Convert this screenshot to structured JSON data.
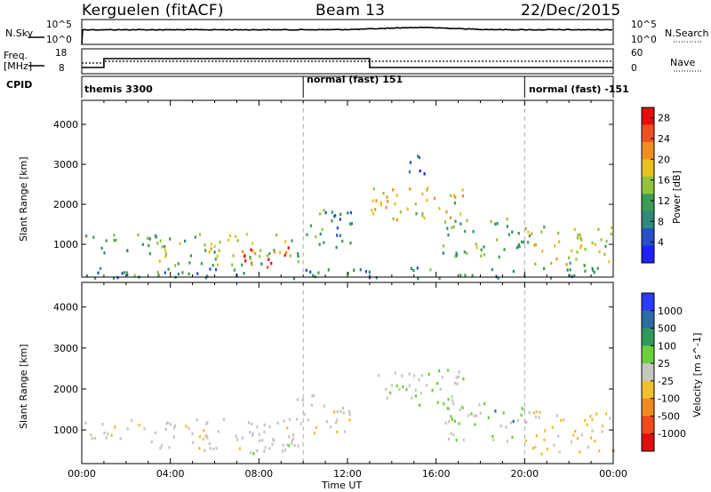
{
  "header": {
    "site": "Kerguelen (fitACF)",
    "beam": "Beam 13",
    "date": "22/Dec/2015"
  },
  "panels": {
    "nsky": {
      "label": "N.Sky",
      "ticks_left": [
        "10^5",
        "10^0"
      ],
      "right_label": "N.Search",
      "ticks_right": [
        "10^5",
        "10^0"
      ]
    },
    "freq": {
      "label_line1": "Freq.",
      "label_line2": "[MHz]",
      "ticks_left": [
        "18",
        "8"
      ],
      "right_label": "Nave",
      "ticks_right": [
        "60",
        "0"
      ]
    },
    "cpid": {
      "label": "CPID",
      "segments": [
        "themis 3300",
        "normal (fast) 151",
        "normal (fast) -151"
      ]
    }
  },
  "chart_data": [
    {
      "type": "heatmap",
      "title": "",
      "xlabel": "",
      "ylabel": "Slant Range [km]",
      "x_ticks": [
        "00:00",
        "04:00",
        "08:00",
        "12:00",
        "16:00",
        "20:00",
        "00:00"
      ],
      "xlim": [
        0,
        24
      ],
      "ylim": [
        180,
        4600
      ],
      "y_ticks": [
        1000,
        2000,
        3000,
        4000
      ],
      "colorbar": {
        "label": "Power [dB]",
        "ticks": [
          4,
          8,
          12,
          16,
          20,
          24,
          28
        ],
        "range": [
          0,
          30
        ],
        "colors": [
          "#1f1fff",
          "#2850c8",
          "#2e8a7a",
          "#3c9c56",
          "#90c43a",
          "#e8c020",
          "#f08f20",
          "#f05020",
          "#e80d0d"
        ]
      },
      "scatter_regions": [
        {
          "x": [
            0.0,
            3.0
          ],
          "y": [
            820,
            1280
          ],
          "value": 12
        },
        {
          "x": [
            3.0,
            10.0
          ],
          "y": [
            500,
            1300
          ],
          "value": 14
        },
        {
          "x": [
            6.8,
            9.6
          ],
          "y": [
            450,
            950
          ],
          "value": 26
        },
        {
          "x": [
            5.5,
            6.6
          ],
          "y": [
            850,
            1150
          ],
          "value": 18
        },
        {
          "x": [
            9.6,
            12.2
          ],
          "y": [
            950,
            1900
          ],
          "value": 10
        },
        {
          "x": [
            13.0,
            17.3
          ],
          "y": [
            1600,
            2500
          ],
          "value": 18
        },
        {
          "x": [
            14.7,
            15.7
          ],
          "y": [
            2800,
            3400
          ],
          "value": 8
        },
        {
          "x": [
            16.2,
            20.0
          ],
          "y": [
            700,
            1700
          ],
          "value": 12
        },
        {
          "x": [
            20.0,
            24.0
          ],
          "y": [
            450,
            1500
          ],
          "value": 16
        },
        {
          "x": [
            0.0,
            24.0
          ],
          "y": [
            180,
            450
          ],
          "value": 9
        }
      ]
    },
    {
      "type": "heatmap",
      "title": "",
      "xlabel": "Time UT",
      "ylabel": "Slant Range [km]",
      "x_ticks": [
        "00:00",
        "04:00",
        "08:00",
        "12:00",
        "16:00",
        "20:00",
        "00:00"
      ],
      "xlim": [
        0,
        24
      ],
      "ylim": [
        180,
        4600
      ],
      "y_ticks": [
        1000,
        2000,
        3000,
        4000
      ],
      "colorbar": {
        "label": "Velocity [m s^-1]",
        "ticks": [
          "1000",
          "500",
          "100",
          "25",
          "-25",
          "-100",
          "-500",
          "-1000"
        ],
        "colors": [
          "#2a3cff",
          "#2c6ca6",
          "#2f9a5a",
          "#6cd03c",
          "#c7c6be",
          "#f0c030",
          "#f08a20",
          "#f04a18",
          "#e00e0e"
        ]
      },
      "scatter_regions": [
        {
          "x": [
            0.0,
            3.0
          ],
          "y": [
            820,
            1280
          ],
          "value": -25
        },
        {
          "x": [
            3.0,
            10.0
          ],
          "y": [
            500,
            1300
          ],
          "value": 0
        },
        {
          "x": [
            6.8,
            9.6
          ],
          "y": [
            450,
            950
          ],
          "value": 0
        },
        {
          "x": [
            9.6,
            12.2
          ],
          "y": [
            950,
            1900
          ],
          "value": -40
        },
        {
          "x": [
            13.0,
            17.3
          ],
          "y": [
            1600,
            2500
          ],
          "value": 60
        },
        {
          "x": [
            16.2,
            20.0
          ],
          "y": [
            700,
            1700
          ],
          "value": 80
        },
        {
          "x": [
            20.0,
            24.0
          ],
          "y": [
            450,
            1500
          ],
          "value": -60
        }
      ]
    }
  ]
}
